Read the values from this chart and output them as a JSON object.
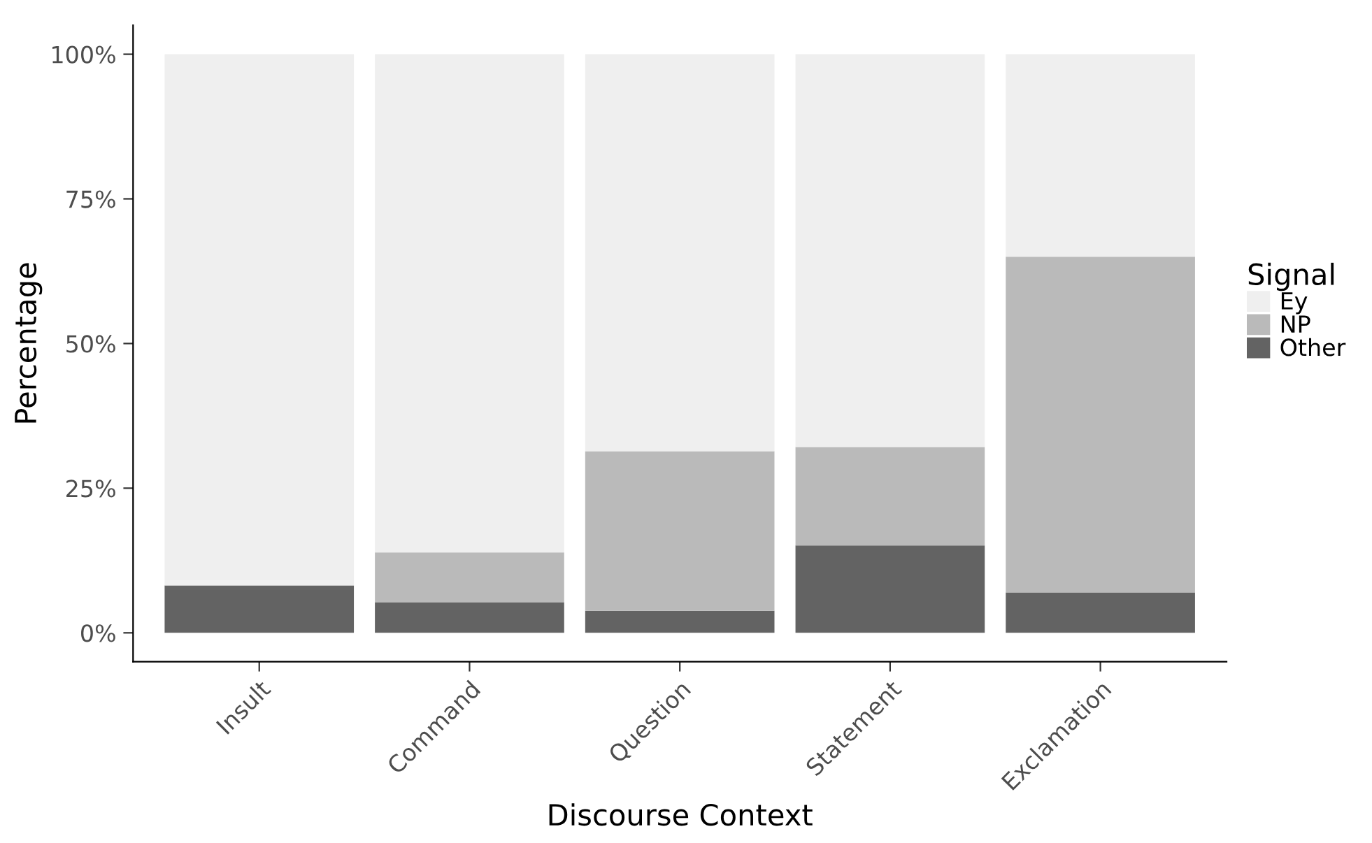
{
  "chart_data": {
    "type": "bar",
    "stacked": true,
    "xlabel": "Discourse Context",
    "ylabel": "Percentage",
    "legend_title": "Signal",
    "legend": "right",
    "grid": false,
    "categories": [
      "Insult",
      "Command",
      "Question",
      "Statement",
      "Exclamation"
    ],
    "series": [
      {
        "name": "Other",
        "color": "#636363",
        "values": [
          8.2,
          5.3,
          3.8,
          15.1,
          7.0
        ]
      },
      {
        "name": "NP",
        "color": "#bababa",
        "values": [
          0,
          8.6,
          27.6,
          17.0,
          58.0
        ]
      },
      {
        "name": "Ey",
        "color": "#efefef",
        "values": [
          91.8,
          86.1,
          68.6,
          67.9,
          35.0
        ]
      }
    ],
    "ylim": [
      -5,
      105
    ],
    "yticks": [
      {
        "value": 0,
        "label": "0%"
      },
      {
        "value": 25,
        "label": "25%"
      },
      {
        "value": 50,
        "label": "50%"
      },
      {
        "value": 75,
        "label": "75%"
      },
      {
        "value": 100,
        "label": "100%"
      }
    ]
  }
}
